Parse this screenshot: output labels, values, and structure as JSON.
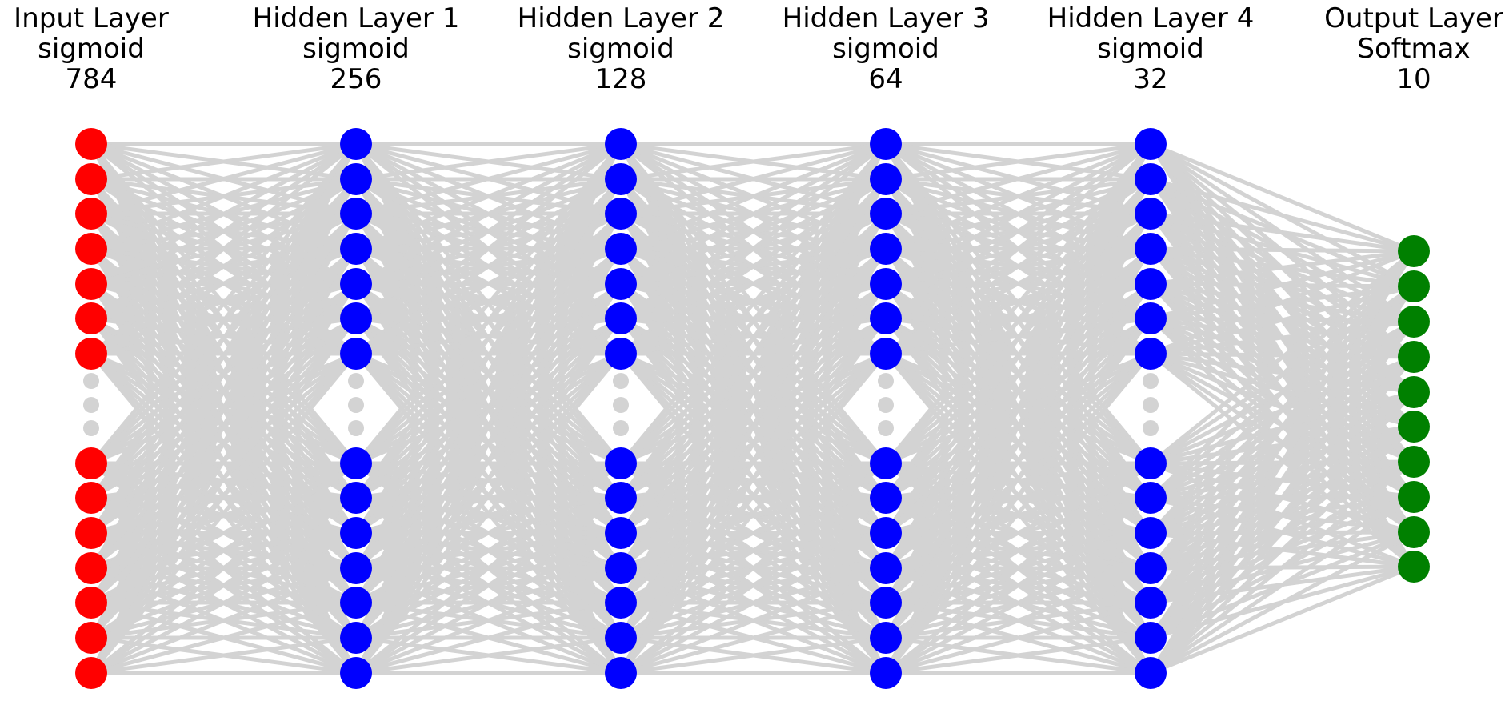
{
  "layers": [
    {
      "name": "Input Layer",
      "activation": "sigmoid",
      "units": "784",
      "color": "#ff0000",
      "truncated": true
    },
    {
      "name": "Hidden Layer 1",
      "activation": "sigmoid",
      "units": "256",
      "color": "#0000ff",
      "truncated": true
    },
    {
      "name": "Hidden Layer 2",
      "activation": "sigmoid",
      "units": "128",
      "color": "#0000ff",
      "truncated": true
    },
    {
      "name": "Hidden Layer 3",
      "activation": "sigmoid",
      "units": "64",
      "color": "#0000ff",
      "truncated": true
    },
    {
      "name": "Hidden Layer 4",
      "activation": "sigmoid",
      "units": "32",
      "color": "#0000ff",
      "truncated": true
    },
    {
      "name": "Output Layer",
      "activation": "Softmax",
      "units": "10",
      "color": "#008000",
      "truncated": false
    }
  ],
  "style": {
    "edge_color": "#d3d3d3",
    "ellipsis_color": "#d3d3d3"
  }
}
